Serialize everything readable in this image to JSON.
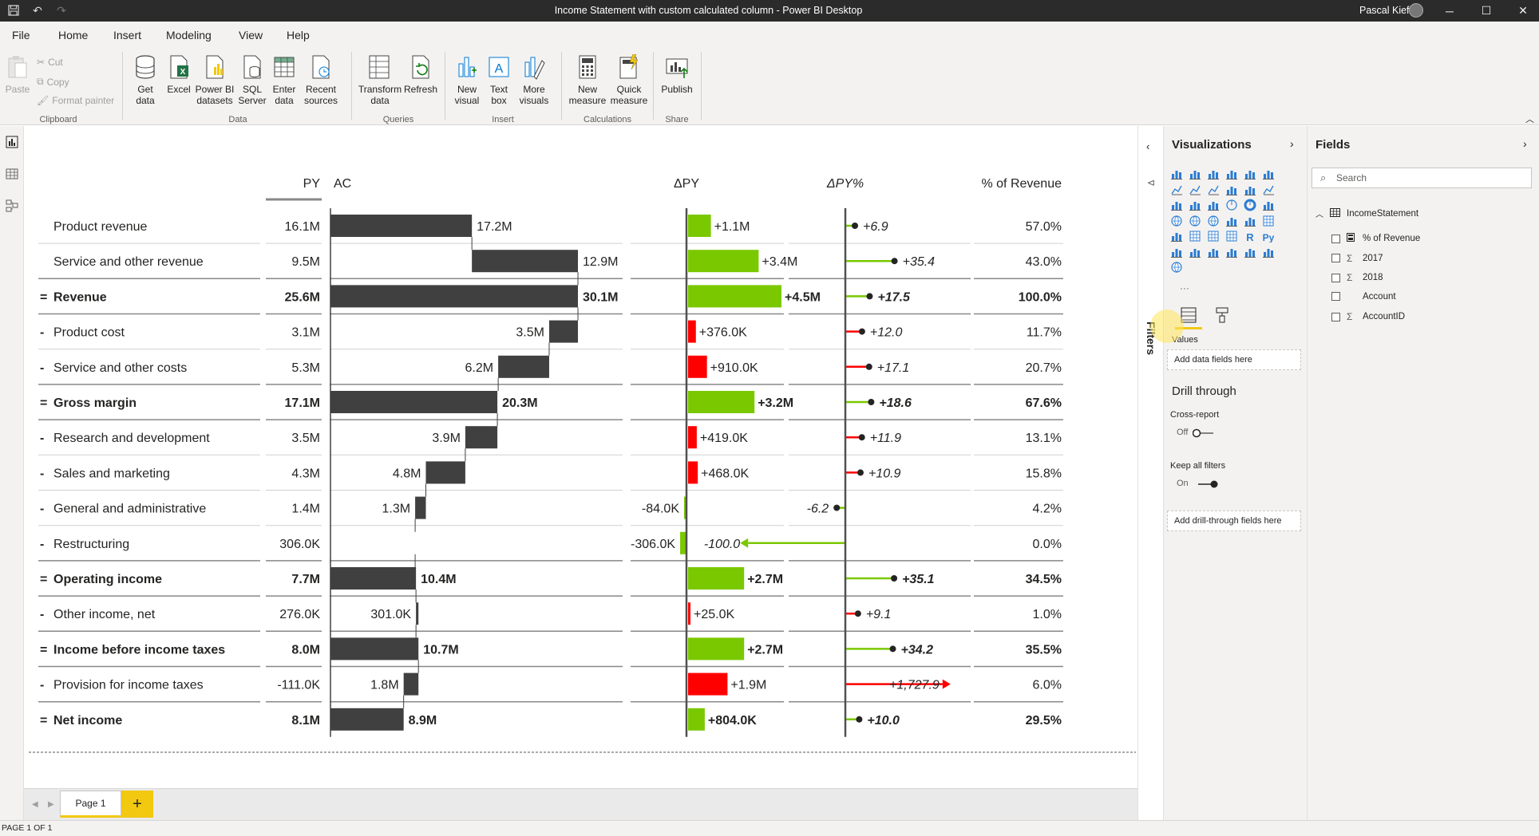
{
  "window": {
    "title": "Income Statement with custom calculated column - Power BI Desktop",
    "user": "Pascal Kiefer"
  },
  "menu": {
    "tabs": [
      "File",
      "Home",
      "Insert",
      "Modeling",
      "View",
      "Help"
    ],
    "active": "Home"
  },
  "ribbon": {
    "clipboard": {
      "paste": "Paste",
      "cut": "Cut",
      "copy": "Copy",
      "format_painter": "Format painter",
      "group": "Clipboard"
    },
    "data": {
      "get_data": "Get data",
      "excel": "Excel",
      "pbi_datasets": "Power BI datasets",
      "sql": "SQL Server",
      "enter_data": "Enter data",
      "recent": "Recent sources",
      "group": "Data"
    },
    "queries": {
      "transform": "Transform data",
      "refresh": "Refresh",
      "group": "Queries"
    },
    "insert": {
      "new_visual": "New visual",
      "text_box": "Text box",
      "more_visuals": "More visuals",
      "group": "Insert"
    },
    "calculations": {
      "new_measure": "New measure",
      "quick_measure": "Quick measure",
      "group": "Calculations"
    },
    "share": {
      "publish": "Publish",
      "group": "Share"
    }
  },
  "chart_data": {
    "type": "table",
    "columns": {
      "py": "PY",
      "ac": "AC",
      "dpy": "ΔPY",
      "dpyp": "ΔPY%",
      "rev": "% of Revenue"
    },
    "rows": [
      {
        "prefix": "",
        "label": "Product revenue",
        "bold": false,
        "py": "16.1M",
        "ac": "17.2M",
        "ac_val": 17.2,
        "bar_start": 0,
        "bar_end": 17.2,
        "dpy": "+1.1M",
        "dpy_val": 1.1,
        "dpyp": "+6.9",
        "dpyp_val": 6.9,
        "rev": "57.0%"
      },
      {
        "prefix": "",
        "label": "Service and other revenue",
        "bold": false,
        "py": "9.5M",
        "ac": "12.9M",
        "ac_val": 12.9,
        "bar_start": 17.2,
        "bar_end": 30.1,
        "dpy": "+3.4M",
        "dpy_val": 3.4,
        "dpyp": "+35.4",
        "dpyp_val": 35.4,
        "rev": "43.0%"
      },
      {
        "prefix": "=",
        "label": "Revenue",
        "bold": true,
        "py": "25.6M",
        "ac": "30.1M",
        "ac_val": 30.1,
        "bar_start": 0,
        "bar_end": 30.1,
        "dpy": "+4.5M",
        "dpy_val": 4.5,
        "dpyp": "+17.5",
        "dpyp_val": 17.5,
        "rev": "100.0%"
      },
      {
        "prefix": "-",
        "label": "Product cost",
        "bold": false,
        "py": "3.1M",
        "ac": "3.5M",
        "ac_val": 3.5,
        "bar_start": 26.6,
        "bar_end": 30.1,
        "dpy": "+376.0K",
        "dpy_val": 0.376,
        "dpyp": "+12.0",
        "dpyp_val": 12.0,
        "rev": "11.7%",
        "neg_good": true
      },
      {
        "prefix": "-",
        "label": "Service and other costs",
        "bold": false,
        "py": "5.3M",
        "ac": "6.2M",
        "ac_val": 6.2,
        "bar_start": 20.4,
        "bar_end": 26.6,
        "dpy": "+910.0K",
        "dpy_val": 0.91,
        "dpyp": "+17.1",
        "dpyp_val": 17.1,
        "rev": "20.7%",
        "neg_good": true
      },
      {
        "prefix": "=",
        "label": "Gross margin",
        "bold": true,
        "py": "17.1M",
        "ac": "20.3M",
        "ac_val": 20.3,
        "bar_start": 0,
        "bar_end": 20.3,
        "dpy": "+3.2M",
        "dpy_val": 3.2,
        "dpyp": "+18.6",
        "dpyp_val": 18.6,
        "rev": "67.6%"
      },
      {
        "prefix": "-",
        "label": "Research and development",
        "bold": false,
        "py": "3.5M",
        "ac": "3.9M",
        "ac_val": 3.9,
        "bar_start": 16.4,
        "bar_end": 20.3,
        "dpy": "+419.0K",
        "dpy_val": 0.419,
        "dpyp": "+11.9",
        "dpyp_val": 11.9,
        "rev": "13.1%",
        "neg_good": true
      },
      {
        "prefix": "-",
        "label": "Sales and marketing",
        "bold": false,
        "py": "4.3M",
        "ac": "4.8M",
        "ac_val": 4.8,
        "bar_start": 11.6,
        "bar_end": 16.4,
        "dpy": "+468.0K",
        "dpy_val": 0.468,
        "dpyp": "+10.9",
        "dpyp_val": 10.9,
        "rev": "15.8%",
        "neg_good": true
      },
      {
        "prefix": "-",
        "label": "General and administrative",
        "bold": false,
        "py": "1.4M",
        "ac": "1.3M",
        "ac_val": 1.3,
        "bar_start": 10.3,
        "bar_end": 11.6,
        "dpy": "-84.0K",
        "dpy_val": -0.084,
        "dpyp": "-6.2",
        "dpyp_val": -6.2,
        "rev": "4.2%",
        "neg_good": true
      },
      {
        "prefix": "-",
        "label": "Restructuring",
        "bold": false,
        "py": "306.0K",
        "ac": "",
        "ac_val": 0,
        "bar_start": 10.3,
        "bar_end": 10.3,
        "dpy": "-306.0K",
        "dpy_val": -0.306,
        "dpyp": "-100.0",
        "dpyp_val": -100.0,
        "rev": "0.0%",
        "neg_good": true
      },
      {
        "prefix": "=",
        "label": "Operating income",
        "bold": true,
        "py": "7.7M",
        "ac": "10.4M",
        "ac_val": 10.4,
        "bar_start": 0,
        "bar_end": 10.4,
        "dpy": "+2.7M",
        "dpy_val": 2.7,
        "dpyp": "+35.1",
        "dpyp_val": 35.1,
        "rev": "34.5%"
      },
      {
        "prefix": "-",
        "label": "Other income, net",
        "bold": false,
        "py": "276.0K",
        "ac": "301.0K",
        "ac_val": 0.301,
        "bar_start": 10.4,
        "bar_end": 10.7,
        "dpy": "+25.0K",
        "dpy_val": 0.025,
        "dpyp": "+9.1",
        "dpyp_val": 9.1,
        "rev": "1.0%",
        "neg_good": true
      },
      {
        "prefix": "=",
        "label": "Income before income taxes",
        "bold": true,
        "py": "8.0M",
        "ac": "10.7M",
        "ac_val": 10.7,
        "bar_start": 0,
        "bar_end": 10.7,
        "dpy": "+2.7M",
        "dpy_val": 2.7,
        "dpyp": "+34.2",
        "dpyp_val": 34.2,
        "rev": "35.5%"
      },
      {
        "prefix": "-",
        "label": "Provision for income taxes",
        "bold": false,
        "py": "-111.0K",
        "ac": "1.8M",
        "ac_val": 1.8,
        "bar_start": 8.9,
        "bar_end": 10.7,
        "dpy": "+1.9M",
        "dpy_val": 1.9,
        "dpyp": "+1,727.9",
        "dpyp_val": 1727.9,
        "rev": "6.0%",
        "neg_good": true
      },
      {
        "prefix": "=",
        "label": "Net income",
        "bold": true,
        "py": "8.1M",
        "ac": "8.9M",
        "ac_val": 8.9,
        "bar_start": 0,
        "bar_end": 8.9,
        "dpy": "+804.0K",
        "dpy_val": 0.804,
        "dpyp": "+10.0",
        "dpyp_val": 10.0,
        "rev": "29.5%"
      }
    ],
    "colors": {
      "bar": "#404040",
      "good": "#7ac800",
      "bad": "#ff0000"
    }
  },
  "filters": {
    "label": "Filters"
  },
  "visualizations": {
    "title": "Visualizations",
    "values_label": "Values",
    "add_data": "Add data fields here",
    "drill_through": "Drill through",
    "cross_report": "Cross-report",
    "off": "Off",
    "keep_filters": "Keep all filters",
    "on": "On",
    "add_drill": "Add drill-through fields here",
    "more": "···"
  },
  "fields": {
    "title": "Fields",
    "search_placeholder": "Search",
    "table": "IncomeStatement",
    "items": [
      {
        "name": "% of Revenue",
        "sigma": ""
      },
      {
        "name": "2017",
        "sigma": "Σ"
      },
      {
        "name": "2018",
        "sigma": "Σ"
      },
      {
        "name": "Account",
        "sigma": ""
      },
      {
        "name": "AccountID",
        "sigma": "Σ"
      }
    ]
  },
  "pages": {
    "tab": "Page 1",
    "add": "+"
  },
  "status": "PAGE 1 OF 1"
}
